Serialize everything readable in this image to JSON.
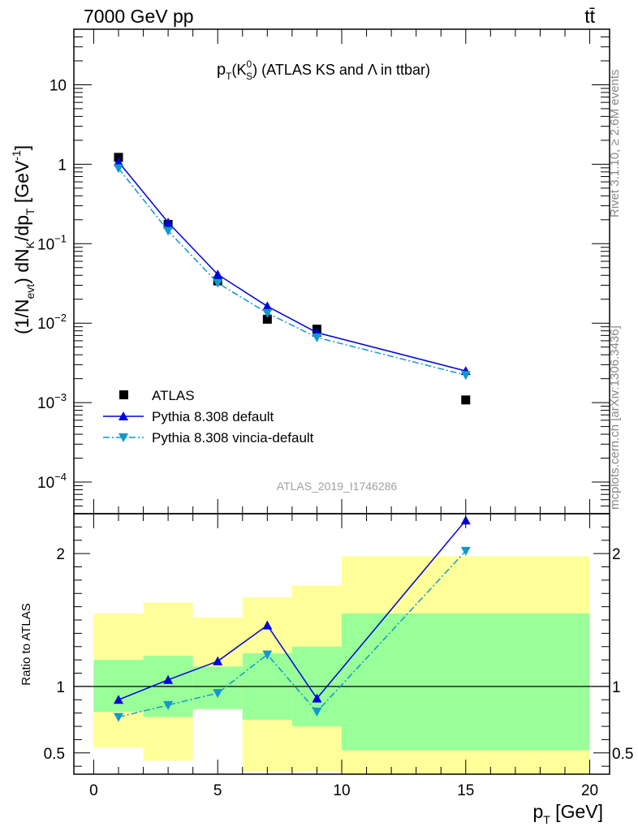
{
  "header": {
    "left": "7000 GeV pp",
    "right": "tt̄"
  },
  "side_labels": {
    "rivet": "Rivet 3.1.10, ≥ 2.6M events",
    "mcplots": "mcplots.cern.ch [arXiv:1306.3436]"
  },
  "watermark": "ATLAS_2019_I1746286",
  "colors": {
    "atlas": "#000000",
    "pythia_default": "#0000dd",
    "pythia_vincia": "#1199cc",
    "band_outer": "#ffff99",
    "band_inner": "#99ff99"
  },
  "chart_data": [
    {
      "type": "scatter",
      "title_parts": {
        "p": "p",
        "T": "T",
        "open": "(K",
        "sup": "0",
        "sub": "S",
        "rest": ") (ATLAS KS and",
        "lambda": "Λ",
        "end": " in ttbar)"
      },
      "ylabel_parts": {
        "a": "(1/N",
        "evt": "evt",
        "b": ") dN",
        "K": "K",
        "c": "/dp",
        "T": "T",
        "d": " [GeV",
        "e": "-1",
        "f": "]"
      },
      "yscale": "log",
      "ylim": [
        4e-05,
        50
      ],
      "xlim": [
        -0.8,
        20.8
      ],
      "y_ticks": [
        {
          "value": 10,
          "base": "10",
          "exp": ""
        },
        {
          "value": 1,
          "base": "1",
          "exp": ""
        },
        {
          "value": 0.1,
          "base": "10",
          "exp": "−1"
        },
        {
          "value": 0.01,
          "base": "10",
          "exp": "−2"
        },
        {
          "value": 0.001,
          "base": "10",
          "exp": "−3"
        },
        {
          "value": 0.0001,
          "base": "10",
          "exp": "−4"
        }
      ],
      "legend_position": "bottom-left",
      "series": [
        {
          "name": "ATLAS",
          "marker": "square",
          "x": [
            1,
            3,
            5,
            7,
            9,
            15
          ],
          "y": [
            1.22,
            0.175,
            0.034,
            0.0112,
            0.0084,
            0.00108
          ]
        },
        {
          "name": "Pythia 8.308 default",
          "marker": "triangle-up",
          "line": "solid",
          "x": [
            1,
            3,
            5,
            7,
            9,
            15
          ],
          "y": [
            1.07,
            0.185,
            0.041,
            0.0163,
            0.0076,
            0.0025
          ]
        },
        {
          "name": "Pythia 8.308 vincia-default",
          "marker": "triangle-down",
          "line": "dashdot",
          "x": [
            1,
            3,
            5,
            7,
            9,
            15
          ],
          "y": [
            0.89,
            0.145,
            0.032,
            0.0134,
            0.0066,
            0.00222
          ]
        }
      ]
    },
    {
      "type": "line",
      "ylabel": "Ratio to ATLAS",
      "xlabel_parts": {
        "p": "p",
        "T": "T",
        "unit": " [GeV]"
      },
      "xlim": [
        -0.8,
        20.8
      ],
      "ylim": [
        0.34,
        2.3
      ],
      "x_ticks": [
        0,
        5,
        10,
        15,
        20
      ],
      "y_ticks": [
        {
          "value": 0.5,
          "label": "0.5"
        },
        {
          "value": 1,
          "label": "1"
        },
        {
          "value": 2,
          "label": "2"
        }
      ],
      "reference_line": 1,
      "bands": [
        {
          "x0": 0,
          "x1": 2,
          "outer": [
            0.54,
            1.55
          ],
          "inner": [
            0.81,
            1.2
          ]
        },
        {
          "x0": 2,
          "x1": 4,
          "outer": [
            0.44,
            1.63
          ],
          "inner": [
            0.77,
            1.23
          ]
        },
        {
          "x0": 4,
          "x1": 6,
          "outer": [
            0.83,
            1.52
          ],
          "inner": [
            0.83,
            1.15
          ]
        },
        {
          "x0": 6,
          "x1": 8,
          "outer": [
            0.36,
            1.67
          ],
          "inner": [
            0.75,
            1.25
          ]
        },
        {
          "x0": 8,
          "x1": 10,
          "outer": [
            0.36,
            1.76
          ],
          "inner": [
            0.7,
            1.3
          ]
        },
        {
          "x0": 10,
          "x1": 20,
          "outer": [
            0.34,
            1.98
          ],
          "inner": [
            0.52,
            1.55
          ]
        }
      ],
      "series": [
        {
          "name": "Pythia 8.308 default",
          "marker": "triangle-up",
          "line": "solid",
          "x": [
            1,
            3,
            5,
            7,
            9,
            15
          ],
          "y": [
            0.9,
            1.05,
            1.19,
            1.46,
            0.91,
            2.25
          ]
        },
        {
          "name": "Pythia 8.308 vincia-default",
          "marker": "triangle-down",
          "line": "dashdot",
          "x": [
            1,
            3,
            5,
            7,
            9,
            15
          ],
          "y": [
            0.77,
            0.86,
            0.95,
            1.24,
            0.81,
            2.02
          ]
        }
      ]
    }
  ]
}
